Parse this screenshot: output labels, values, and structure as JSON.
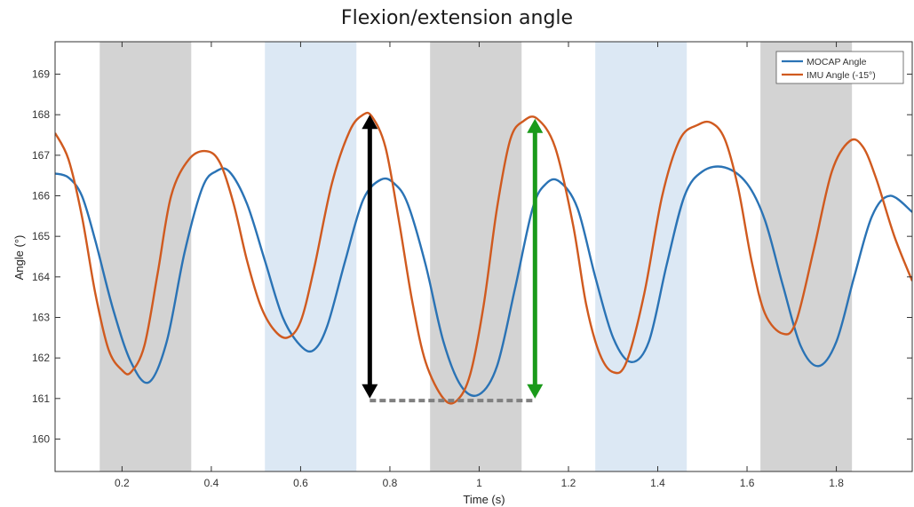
{
  "chart_data": {
    "type": "line",
    "title": "Flexion/extension angle",
    "xlabel": "Time (s)",
    "ylabel": "Angle (°)",
    "xlim": [
      0.05,
      1.97
    ],
    "ylim": [
      159.2,
      169.8
    ],
    "xticks": [
      0.2,
      0.4,
      0.6,
      0.8,
      1,
      1.2,
      1.4,
      1.6,
      1.8
    ],
    "xtick_labels": [
      "0.2",
      "0.4",
      "0.6",
      "0.8",
      "1",
      "1.2",
      "1.4",
      "1.6",
      "1.8"
    ],
    "yticks": [
      160,
      161,
      162,
      163,
      164,
      165,
      166,
      167,
      168,
      169
    ],
    "ytick_labels": [
      "160",
      "161",
      "162",
      "163",
      "164",
      "165",
      "166",
      "167",
      "168",
      "169"
    ],
    "legend_position": "top-right",
    "shaded_regions": [
      {
        "x0": 0.15,
        "x1": 0.355,
        "color": "#d3d3d3"
      },
      {
        "x0": 0.52,
        "x1": 0.725,
        "color": "#dce8f4"
      },
      {
        "x0": 0.89,
        "x1": 1.095,
        "color": "#d3d3d3"
      },
      {
        "x0": 1.26,
        "x1": 1.465,
        "color": "#dce8f4"
      },
      {
        "x0": 1.63,
        "x1": 1.835,
        "color": "#d3d3d3"
      }
    ],
    "series": [
      {
        "name": "MOCAP Angle",
        "color": "#2a73b5",
        "x": [
          0.05,
          0.08,
          0.11,
          0.14,
          0.18,
          0.22,
          0.26,
          0.3,
          0.34,
          0.38,
          0.41,
          0.44,
          0.48,
          0.52,
          0.56,
          0.6,
          0.63,
          0.66,
          0.7,
          0.74,
          0.78,
          0.81,
          0.84,
          0.88,
          0.92,
          0.96,
          1.0,
          1.04,
          1.08,
          1.12,
          1.15,
          1.18,
          1.22,
          1.26,
          1.3,
          1.34,
          1.38,
          1.42,
          1.46,
          1.5,
          1.55,
          1.6,
          1.64,
          1.68,
          1.72,
          1.76,
          1.8,
          1.84,
          1.88,
          1.92,
          1.97
        ],
        "values": [
          166.55,
          166.45,
          166.0,
          164.9,
          163.2,
          161.9,
          161.4,
          162.4,
          164.6,
          166.2,
          166.6,
          166.6,
          165.8,
          164.4,
          163.0,
          162.3,
          162.2,
          162.8,
          164.4,
          165.9,
          166.4,
          166.3,
          165.8,
          164.3,
          162.4,
          161.3,
          161.1,
          161.8,
          163.7,
          165.7,
          166.3,
          166.35,
          165.7,
          164.0,
          162.5,
          161.9,
          162.4,
          164.3,
          166.0,
          166.6,
          166.7,
          166.3,
          165.4,
          163.8,
          162.3,
          161.8,
          162.4,
          164.0,
          165.5,
          166.0,
          165.6
        ]
      },
      {
        "name": "IMU Angle (-15°)",
        "color": "#d05a1f",
        "x": [
          0.05,
          0.08,
          0.11,
          0.14,
          0.17,
          0.2,
          0.22,
          0.25,
          0.28,
          0.31,
          0.35,
          0.39,
          0.42,
          0.45,
          0.48,
          0.51,
          0.54,
          0.57,
          0.6,
          0.63,
          0.67,
          0.71,
          0.74,
          0.76,
          0.79,
          0.82,
          0.85,
          0.88,
          0.92,
          0.95,
          0.98,
          1.01,
          1.04,
          1.07,
          1.1,
          1.13,
          1.17,
          1.21,
          1.24,
          1.27,
          1.3,
          1.33,
          1.37,
          1.41,
          1.45,
          1.49,
          1.52,
          1.55,
          1.58,
          1.61,
          1.64,
          1.68,
          1.71,
          1.75,
          1.79,
          1.83,
          1.86,
          1.89,
          1.93,
          1.97
        ],
        "values": [
          167.55,
          166.9,
          165.5,
          163.6,
          162.2,
          161.7,
          161.65,
          162.3,
          164.1,
          166.0,
          166.9,
          167.1,
          166.8,
          165.8,
          164.4,
          163.3,
          162.7,
          162.5,
          162.9,
          164.2,
          166.3,
          167.6,
          168.0,
          167.95,
          167.2,
          165.4,
          163.4,
          161.9,
          161.0,
          160.95,
          161.6,
          163.3,
          165.7,
          167.4,
          167.85,
          167.9,
          167.2,
          165.3,
          163.3,
          162.1,
          161.65,
          161.9,
          163.6,
          166.0,
          167.4,
          167.75,
          167.8,
          167.4,
          166.2,
          164.4,
          163.1,
          162.6,
          162.9,
          164.7,
          166.6,
          167.35,
          167.2,
          166.4,
          165.0,
          163.9
        ]
      }
    ],
    "annotations": [
      {
        "type": "double-arrow",
        "x": 0.755,
        "y0": 161.0,
        "y1": 168.0,
        "color": "#000000"
      },
      {
        "type": "double-arrow",
        "x": 1.125,
        "y0": 161.0,
        "y1": 167.9,
        "color": "#1a9a1a"
      },
      {
        "type": "dashed-line",
        "x0": 0.755,
        "x1": 1.125,
        "y": 160.95,
        "color": "#808080"
      }
    ]
  }
}
